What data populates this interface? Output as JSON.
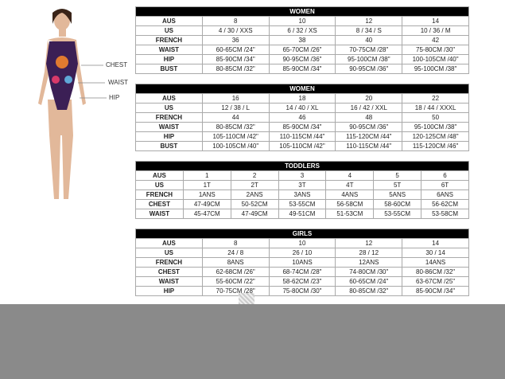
{
  "figure": {
    "labels": [
      "CHEST",
      "WAIST",
      "HIP"
    ]
  },
  "tables": [
    {
      "title": "WOMEN",
      "rows": [
        [
          "AUS",
          "8",
          "10",
          "12",
          "14"
        ],
        [
          "US",
          "4 / 30 / XXS",
          "6 / 32 / XS",
          "8 / 34 / S",
          "10 / 36 / M"
        ],
        [
          "FRENCH",
          "36",
          "38",
          "40",
          "42"
        ],
        [
          "WAIST",
          "60-65CM /24\"",
          "65-70CM /26\"",
          "70-75CM /28\"",
          "75-80CM /30\""
        ],
        [
          "HIP",
          "85-90CM /34\"",
          "90-95CM /36\"",
          "95-100CM /38\"",
          "100-105CM /40\""
        ],
        [
          "BUST",
          "80-85CM /32\"",
          "85-90CM /34\"",
          "90-95CM /36\"",
          "95-100CM /38\""
        ]
      ]
    },
    {
      "title": "WOMEN",
      "rows": [
        [
          "AUS",
          "16",
          "18",
          "20",
          "22"
        ],
        [
          "US",
          "12 / 38 / L",
          "14 / 40 / XL",
          "16 / 42 / XXL",
          "18 / 44 / XXXL"
        ],
        [
          "FRENCH",
          "44",
          "46",
          "48",
          "50"
        ],
        [
          "WAIST",
          "80-85CM /32\"",
          "85-90CM /34\"",
          "90-95CM /36\"",
          "95-100CM /38\""
        ],
        [
          "HIP",
          "105-110CM /42\"",
          "110-115CM /44\"",
          "115-120CM /44\"",
          "120-125CM /48\""
        ],
        [
          "BUST",
          "100-105CM /40\"",
          "105-110CM /42\"",
          "110-115CM /44\"",
          "115-120CM /46\""
        ]
      ]
    },
    {
      "title": "TODDLERS",
      "rows": [
        [
          "AUS",
          "1",
          "2",
          "3",
          "4",
          "5",
          "6"
        ],
        [
          "US",
          "1T",
          "2T",
          "3T",
          "4T",
          "5T",
          "6T"
        ],
        [
          "FRENCH",
          "1ANS",
          "2ANS",
          "3ANS",
          "4ANS",
          "5ANS",
          "6ANS"
        ],
        [
          "CHEST",
          "47-49CM",
          "50-52CM",
          "53-55CM",
          "56-58CM",
          "58-60CM",
          "56-62CM"
        ],
        [
          "WAIST",
          "45-47CM",
          "47-49CM",
          "49-51CM",
          "51-53CM",
          "53-55CM",
          "53-58CM"
        ]
      ]
    },
    {
      "title": "GIRLS",
      "rows": [
        [
          "AUS",
          "8",
          "10",
          "12",
          "14"
        ],
        [
          "US",
          "24 / 8",
          "26 / 10",
          "28 / 12",
          "30 / 14"
        ],
        [
          "FRENCH",
          "8ANS",
          "10ANS",
          "12ANS",
          "14ANS"
        ],
        [
          "CHEST",
          "62-68CM /26\"",
          "68-74CM /28\"",
          "74-80CM /30\"",
          "80-86CM /32\""
        ],
        [
          "WAIST",
          "55-60CM /22\"",
          "58-62CM /23\"",
          "60-65CM /24\"",
          "63-67CM /25\""
        ],
        [
          "HIP",
          "70-75CM /28\"",
          "75-80CM /30\"",
          "80-85CM /32\"",
          "85-90CM /34\""
        ]
      ]
    }
  ]
}
